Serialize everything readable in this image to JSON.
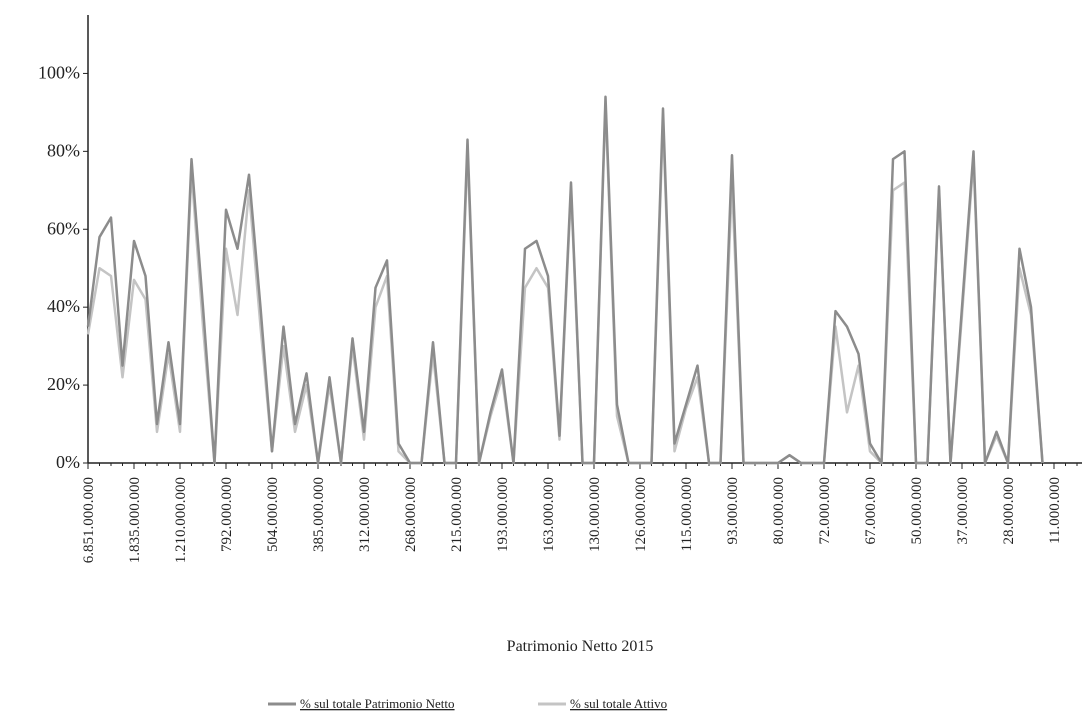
{
  "chart_data": {
    "type": "line",
    "x_label": "Patrimonio Netto 2015",
    "categories": [
      "6.851.000.000",
      null,
      null,
      null,
      "1.835.000.000",
      null,
      null,
      null,
      "1.210.000.000",
      null,
      null,
      null,
      "792.000.000",
      null,
      null,
      null,
      "504.000.000",
      null,
      null,
      null,
      "385.000.000",
      null,
      null,
      null,
      "312.000.000",
      null,
      null,
      null,
      "268.000.000",
      null,
      null,
      null,
      "215.000.000",
      null,
      null,
      null,
      "193.000.000",
      null,
      null,
      null,
      "163.000.000",
      null,
      null,
      null,
      "130.000.000",
      null,
      null,
      null,
      "126.000.000",
      null,
      null,
      null,
      "115.000.000",
      null,
      null,
      null,
      "93.000.000",
      null,
      null,
      null,
      "80.000.000",
      null,
      null,
      null,
      "72.000.000",
      null,
      null,
      null,
      "67.000.000",
      null,
      null,
      null,
      "50.000.000",
      null,
      null,
      null,
      "37.000.000",
      null,
      null,
      null,
      "28.000.000",
      null,
      null,
      null,
      "11.000.000",
      null,
      null,
      null
    ],
    "series": [
      {
        "name": "% sul totale Patrimonio Netto",
        "color": "#8c8c8c",
        "values": [
          35,
          58,
          63,
          25,
          57,
          48,
          10,
          31,
          10,
          78,
          40,
          0,
          65,
          55,
          74,
          40,
          3,
          35,
          10,
          23,
          0,
          22,
          0,
          32,
          8,
          45,
          52,
          5,
          0,
          0,
          31,
          0,
          0,
          83,
          0,
          13,
          24,
          0,
          55,
          57,
          48,
          7,
          72,
          0,
          0,
          94,
          15,
          0,
          0,
          0,
          91,
          5,
          15,
          25,
          0,
          0,
          79,
          0,
          0,
          0,
          0,
          2,
          0,
          0,
          0,
          39,
          35,
          28,
          5,
          0,
          78,
          80,
          0,
          0,
          71,
          0,
          40,
          80,
          0,
          8,
          0,
          55,
          40,
          0,
          null,
          null,
          null,
          null
        ]
      },
      {
        "name": "% sul totale Attivo",
        "color": "#c4c4c4",
        "values": [
          33,
          50,
          48,
          22,
          47,
          42,
          8,
          28,
          8,
          75,
          35,
          0,
          55,
          38,
          70,
          35,
          3,
          30,
          8,
          20,
          0,
          20,
          0,
          30,
          6,
          40,
          48,
          3,
          0,
          0,
          28,
          0,
          0,
          80,
          0,
          12,
          22,
          0,
          45,
          50,
          45,
          6,
          70,
          0,
          0,
          92,
          12,
          0,
          0,
          0,
          88,
          3,
          14,
          22,
          0,
          0,
          72,
          0,
          0,
          0,
          0,
          2,
          0,
          0,
          0,
          35,
          13,
          25,
          3,
          0,
          70,
          72,
          0,
          0,
          70,
          0,
          38,
          78,
          0,
          7,
          0,
          50,
          38,
          0,
          null,
          null,
          null,
          null
        ]
      }
    ],
    "ylim": [
      0,
      115
    ],
    "yticks": [
      {
        "value": 0,
        "label": "0%"
      },
      {
        "value": 20,
        "label": "20%"
      },
      {
        "value": 40,
        "label": "40%"
      },
      {
        "value": 60,
        "label": "60%"
      },
      {
        "value": 80,
        "label": "80%"
      },
      {
        "value": 100,
        "label": "100%"
      }
    ]
  }
}
